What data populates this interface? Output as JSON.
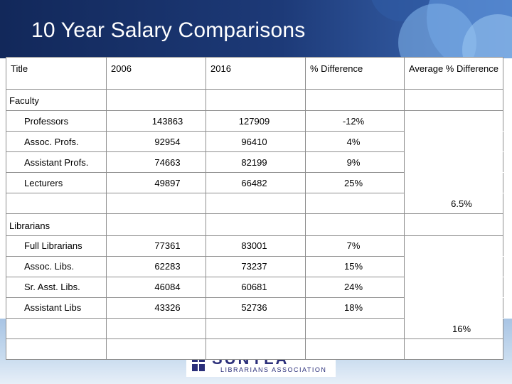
{
  "page": {
    "title": "10 Year Salary Comparisons",
    "logo": {
      "main": "SUNYLA",
      "sub": "LIBRARIANS ASSOCIATION"
    }
  },
  "table": {
    "headers": {
      "title": "Title",
      "y2006": "2006",
      "y2016": "2016",
      "pct_diff": "% Difference",
      "avg_pct_diff": "Average % Difference"
    },
    "sections": [
      {
        "name": "Faculty",
        "rows": [
          {
            "title": "Professors",
            "y2006": "143863",
            "y2016": "127909",
            "diff": "-12%"
          },
          {
            "title": "Assoc. Profs.",
            "y2006": "92954",
            "y2016": "96410",
            "diff": "4%"
          },
          {
            "title": "Assistant Profs.",
            "y2006": "74663",
            "y2016": "82199",
            "diff": "9%"
          },
          {
            "title": "Lecturers",
            "y2006": "49897",
            "y2016": "66482",
            "diff": "25%"
          }
        ],
        "average": "6.5%"
      },
      {
        "name": "Librarians",
        "rows": [
          {
            "title": "Full Librarians",
            "y2006": "77361",
            "y2016": "83001",
            "diff": "7%"
          },
          {
            "title": "Assoc. Libs.",
            "y2006": "62283",
            "y2016": "73237",
            "diff": "15%"
          },
          {
            "title": "Sr. Asst. Libs.",
            "y2006": "46084",
            "y2016": "60681",
            "diff": "24%"
          },
          {
            "title": "Assistant Libs",
            "y2006": "43326",
            "y2016": "52736",
            "diff": "18%"
          }
        ],
        "average": "16%"
      }
    ]
  }
}
